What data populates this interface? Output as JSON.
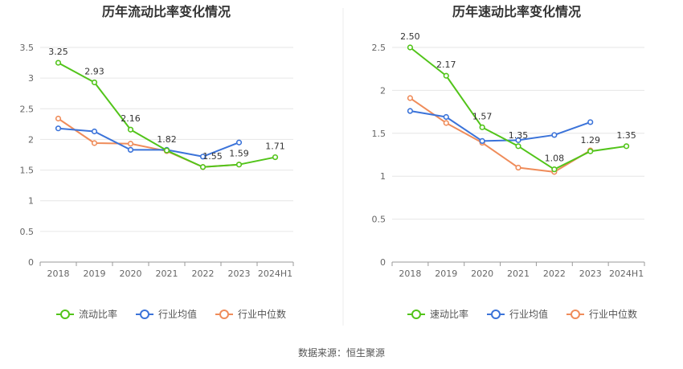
{
  "footer": {
    "source": "数据来源：恒生聚源"
  },
  "chart_data": [
    {
      "type": "line",
      "title": "历年流动比率变化情况",
      "categories": [
        "2018",
        "2019",
        "2020",
        "2021",
        "2022",
        "2023",
        "2024H1"
      ],
      "ylim": [
        0,
        3.5
      ],
      "yticks": [
        "0",
        "0.5",
        "1",
        "1.5",
        "2",
        "2.5",
        "3",
        "3.5"
      ],
      "grid": true,
      "legend_position": "bottom",
      "series": [
        {
          "name": "流动比率",
          "color": "#52c41a",
          "labeled": true,
          "values": [
            3.25,
            2.93,
            2.16,
            1.82,
            1.55,
            1.59,
            1.71
          ],
          "labels": [
            "3.25",
            "2.93",
            "2.16",
            "1.82",
            "1.55",
            "1.59",
            "1.71"
          ]
        },
        {
          "name": "行业均值",
          "color": "#3b73d9",
          "labeled": false,
          "values": [
            2.18,
            2.13,
            1.83,
            1.83,
            1.72,
            1.95,
            null
          ]
        },
        {
          "name": "行业中位数",
          "color": "#ef8c5a",
          "labeled": false,
          "values": [
            2.34,
            1.94,
            1.93,
            1.81,
            1.55,
            1.59,
            null
          ]
        }
      ]
    },
    {
      "type": "line",
      "title": "历年速动比率变化情况",
      "categories": [
        "2018",
        "2019",
        "2020",
        "2021",
        "2022",
        "2023",
        "2024H1"
      ],
      "ylim": [
        0,
        2.5
      ],
      "yticks": [
        "0",
        "0.5",
        "1",
        "1.5",
        "2",
        "2.5"
      ],
      "grid": true,
      "legend_position": "bottom",
      "series": [
        {
          "name": "速动比率",
          "color": "#52c41a",
          "labeled": true,
          "values": [
            2.5,
            2.17,
            1.57,
            1.35,
            1.08,
            1.29,
            1.35
          ],
          "labels": [
            "2.50",
            "2.17",
            "1.57",
            "1.35",
            "1.08",
            "1.29",
            "1.35"
          ]
        },
        {
          "name": "行业均值",
          "color": "#3b73d9",
          "labeled": false,
          "values": [
            1.76,
            1.69,
            1.41,
            1.42,
            1.48,
            1.63,
            null
          ]
        },
        {
          "name": "行业中位数",
          "color": "#ef8c5a",
          "labeled": false,
          "values": [
            1.91,
            1.62,
            1.39,
            1.1,
            1.05,
            1.3,
            null
          ]
        }
      ]
    }
  ]
}
